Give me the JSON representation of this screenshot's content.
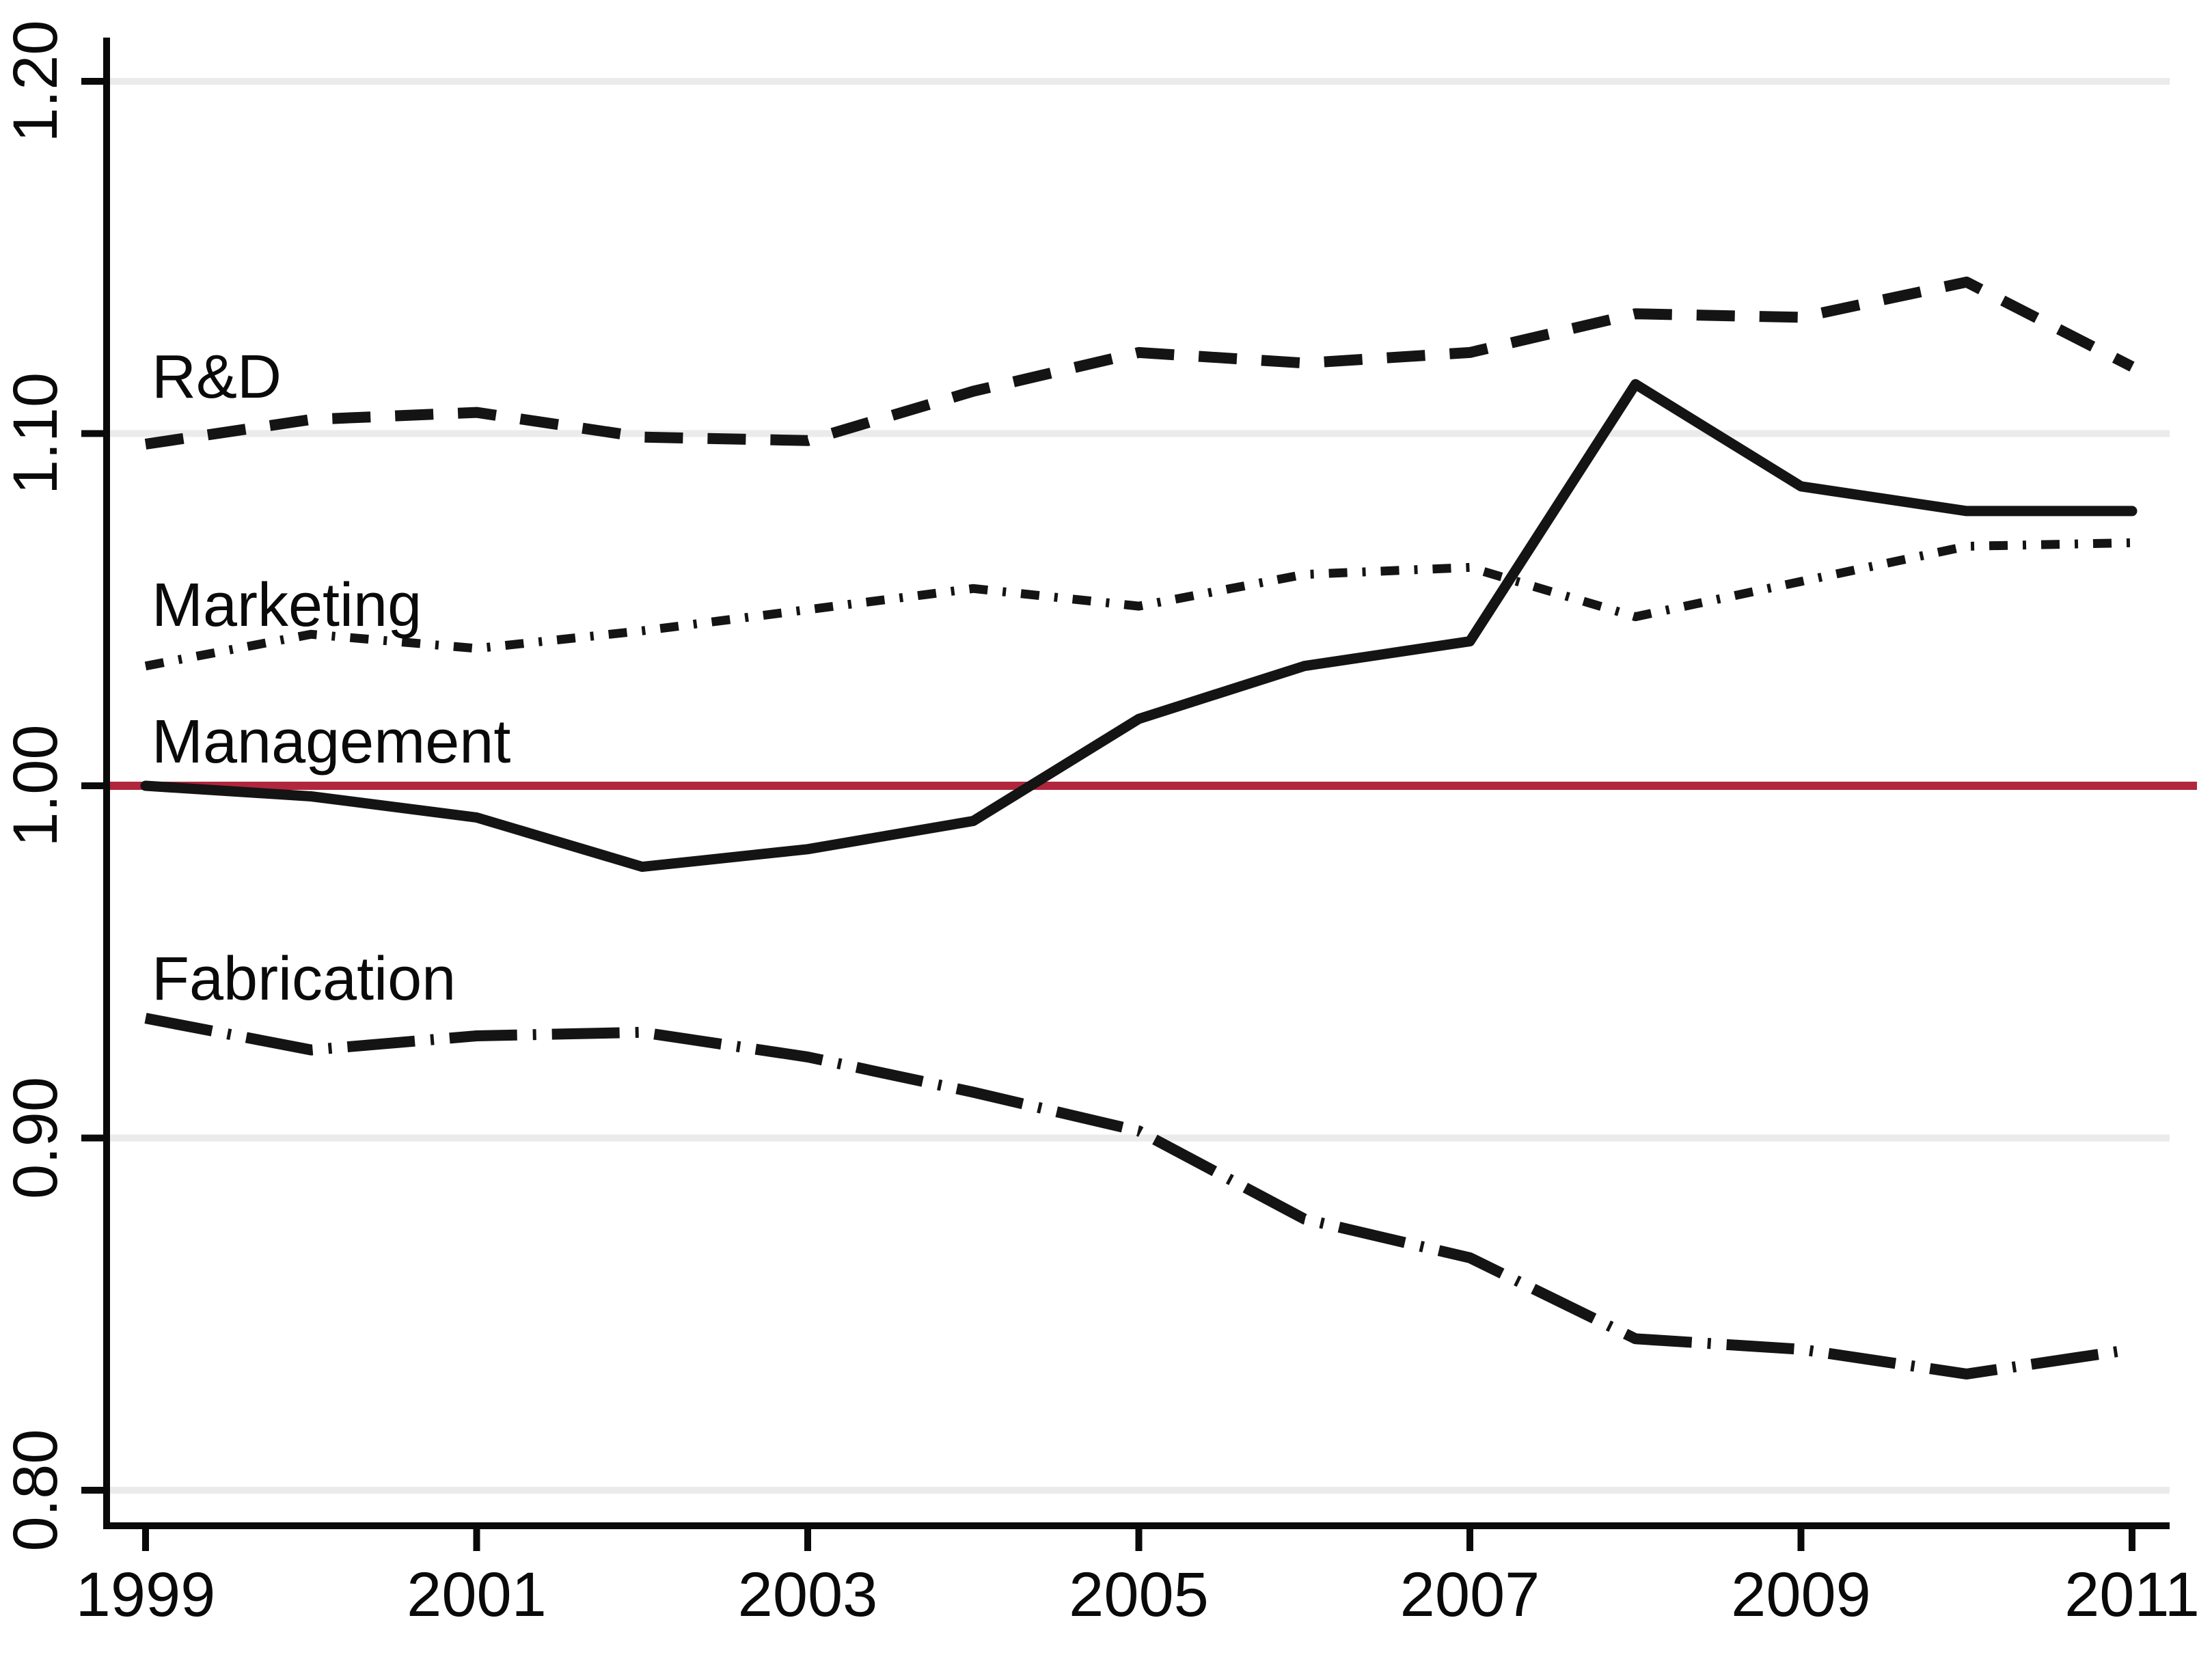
{
  "chart_data": {
    "type": "line",
    "title": "",
    "xlabel": "",
    "ylabel": "",
    "x": [
      1999,
      2000,
      2001,
      2002,
      2003,
      2004,
      2005,
      2006,
      2007,
      2008,
      2009,
      2010,
      2011
    ],
    "series": [
      {
        "name": "R&D",
        "line_style": "dashed",
        "values": [
          1.097,
          1.104,
          1.106,
          1.099,
          1.098,
          1.112,
          1.123,
          1.12,
          1.123,
          1.134,
          1.133,
          1.143,
          1.119
        ]
      },
      {
        "name": "Marketing",
        "line_style": "dash-dot",
        "values": [
          1.034,
          1.043,
          1.039,
          1.044,
          1.05,
          1.056,
          1.051,
          1.06,
          1.062,
          1.048,
          1.058,
          1.068,
          1.069
        ]
      },
      {
        "name": "Management",
        "line_style": "solid",
        "values": [
          1.0,
          0.997,
          0.991,
          0.977,
          0.982,
          0.99,
          1.019,
          1.034,
          1.041,
          1.114,
          1.085,
          1.078,
          1.078
        ]
      },
      {
        "name": "Fabrication",
        "line_style": "long-dash-dot",
        "values": [
          0.934,
          0.925,
          0.929,
          0.93,
          0.923,
          0.913,
          0.902,
          0.877,
          0.866,
          0.843,
          0.84,
          0.833,
          0.84
        ]
      }
    ],
    "reference_line": {
      "value": 1.0,
      "color": "#b0263c"
    },
    "yticks": {
      "values": [
        0.8,
        0.9,
        1.0,
        1.1,
        1.2
      ],
      "labels": [
        "0.80",
        "0.90",
        "1.00",
        "1.10",
        "1.20"
      ]
    },
    "xticks": {
      "values": [
        1999,
        2001,
        2003,
        2005,
        2007,
        2009,
        2011
      ],
      "labels": [
        "1999",
        "2001",
        "2003",
        "2005",
        "2007",
        "2009",
        "2011"
      ]
    },
    "ylim": [
      0.791,
      1.211
    ],
    "xlim": [
      1998.76,
      2011.23
    ],
    "grid": true,
    "legend_position": "inline-labels",
    "colors": {
      "line": "#141414",
      "grid": "#ebebeb",
      "axis": "#0a0a0a",
      "background": "#ffffff"
    }
  }
}
